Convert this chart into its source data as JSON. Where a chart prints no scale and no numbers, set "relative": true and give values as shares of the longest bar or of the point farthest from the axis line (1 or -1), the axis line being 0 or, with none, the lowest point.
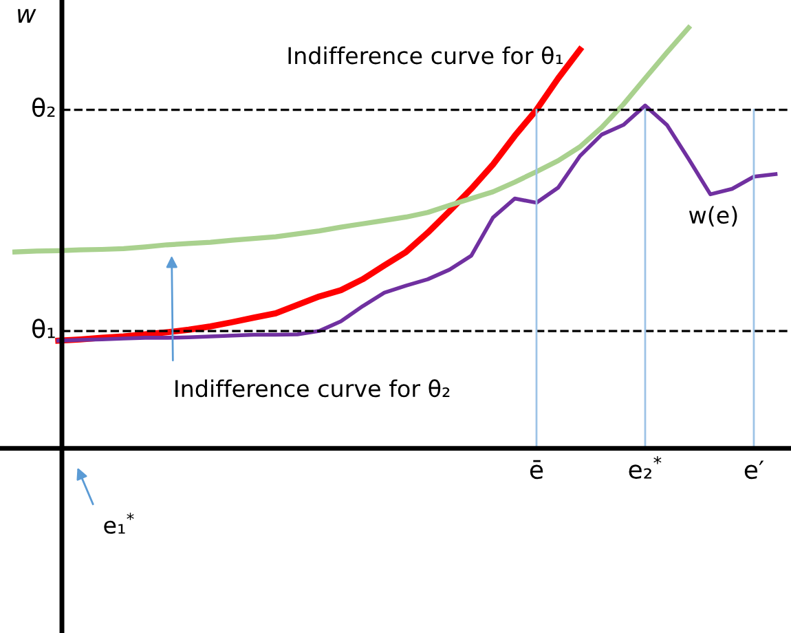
{
  "chart_data": {
    "type": "line",
    "relative": true,
    "ylabel": "w",
    "grid": false,
    "marker": "none",
    "line_style": "solid",
    "categories": [
      null,
      null,
      null,
      null,
      null,
      null,
      null,
      null,
      null,
      null,
      null,
      null,
      null,
      null,
      null,
      null,
      null,
      null,
      null,
      null,
      null,
      null,
      null,
      null,
      "ē",
      null,
      null,
      null,
      null,
      "e₂$^{*}$",
      null,
      null,
      null,
      null,
      "e′",
      null
    ],
    "series": [
      {
        "color": "#ff0000",
        "values": [
          null,
          null,
          0.256,
          0.259,
          0.263,
          0.266,
          0.271,
          0.276,
          0.282,
          0.29,
          0.3,
          0.311,
          0.321,
          0.341,
          0.361,
          0.376,
          0.402,
          0.435,
          0.467,
          0.513,
          0.564,
          0.617,
          0.675,
          0.743,
          0.805,
          0.88,
          0.948,
          null,
          null,
          null,
          null,
          null,
          null,
          null,
          null,
          null
        ]
      },
      {
        "color": "#a9d18e",
        "values": [
          0.467,
          0.469,
          0.47,
          0.472,
          0.473,
          0.475,
          0.479,
          0.484,
          0.487,
          0.49,
          0.495,
          0.499,
          0.503,
          0.51,
          0.517,
          0.526,
          0.534,
          0.542,
          0.55,
          0.561,
          0.578,
          0.594,
          0.61,
          0.633,
          0.658,
          0.684,
          0.717,
          0.763,
          0.818,
          0.88,
          0.941,
          1,
          null,
          null,
          null,
          null
        ]
      },
      {
        "color": "#7030a0",
        "values": [
          null,
          null,
          0.256,
          0.258,
          0.259,
          0.261,
          0.263,
          0.263,
          0.264,
          0.266,
          0.268,
          0.27,
          0.27,
          0.271,
          0.279,
          0.302,
          0.338,
          0.37,
          0.387,
          0.402,
          0.425,
          0.458,
          0.549,
          0.594,
          0.584,
          0.62,
          0.695,
          0.746,
          0.769,
          0.815,
          0.769,
          0.688,
          0.604,
          0.617,
          0.646,
          0.652
        ]
      }
    ],
    "ref_lines": [
      {
        "axis": "y",
        "value": 0.279,
        "label": "θ₁",
        "color": "#000000",
        "line_style": "dashed"
      },
      {
        "axis": "y",
        "value": 0.805,
        "label": "θ₂",
        "color": "#000000",
        "line_style": "dashed"
      },
      {
        "axis": "x",
        "value": "ē",
        "color": "#9dc3e6",
        "line_style": "solid"
      },
      {
        "axis": "x",
        "value": "e₂$^{*}$",
        "color": "#9dc3e6",
        "line_style": "solid"
      },
      {
        "axis": "x",
        "value": "e′",
        "color": "#9dc3e6",
        "line_style": "solid"
      }
    ],
    "annotations": [
      "Indifference curve for θ₁",
      "w(e)",
      "Indifference curve for θ₂",
      "e₁$^{*}$"
    ]
  }
}
